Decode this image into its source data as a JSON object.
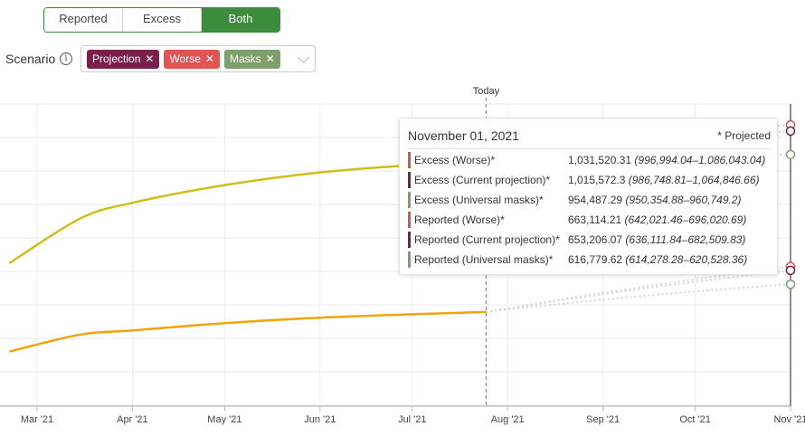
{
  "toggle": {
    "options": [
      "Reported",
      "Excess",
      "Both"
    ],
    "active": "Both"
  },
  "scenario": {
    "label": "Scenario",
    "info_icon": "i",
    "chips": [
      {
        "label": "Projection",
        "remove": "✕",
        "color": "#7a1f4a"
      },
      {
        "label": "Worse",
        "remove": "✕",
        "color": "#e05454"
      },
      {
        "label": "Masks",
        "remove": "✕",
        "color": "#7e9e6a"
      }
    ]
  },
  "chart_data": {
    "type": "line",
    "x_ticks": [
      "Mar '21",
      "Apr '21",
      "May '21",
      "Jun '21",
      "Jul '21",
      "Aug '21",
      "Sep '21",
      "Oct '21",
      "Nov '21"
    ],
    "today_label": "Today",
    "today_date": "2021-07-25",
    "grid": true,
    "series": [
      {
        "name": "Excess",
        "color": "#d1bd1a",
        "points": [
          [
            "2021-02-20",
            672000
          ],
          [
            "2021-03-15",
            788000
          ],
          [
            "2021-04-01",
            829000
          ],
          [
            "2021-05-01",
            875000
          ],
          [
            "2021-06-01",
            908000
          ],
          [
            "2021-07-01",
            927000
          ],
          [
            "2021-07-25",
            938000
          ]
        ]
      },
      {
        "name": "Reported",
        "color": "#f0a30a",
        "points": [
          [
            "2021-02-20",
            442000
          ],
          [
            "2021-03-15",
            486000
          ],
          [
            "2021-04-01",
            497000
          ],
          [
            "2021-05-01",
            516000
          ],
          [
            "2021-06-01",
            530000
          ],
          [
            "2021-07-01",
            539000
          ],
          [
            "2021-07-25",
            545000
          ]
        ]
      }
    ],
    "projection_endpoints": [
      {
        "date": "2021-11-01",
        "value": 1031520.31,
        "color": "#d9534f"
      },
      {
        "date": "2021-11-01",
        "value": 1015572.3,
        "color": "#7a1f4a"
      },
      {
        "date": "2021-11-01",
        "value": 954487.29,
        "color": "#7e9e6a"
      },
      {
        "date": "2021-11-01",
        "value": 663114.21,
        "color": "#d9534f"
      },
      {
        "date": "2021-11-01",
        "value": 653206.07,
        "color": "#7a1f4a"
      },
      {
        "date": "2021-11-01",
        "value": 616779.62,
        "color": "#7e9e6a"
      }
    ]
  },
  "tooltip": {
    "date": "November 01, 2021",
    "projected_note": "* Projected",
    "rows": [
      {
        "label": "Excess (Worse)*",
        "value": "1,031,520.31",
        "ci": "(996,994.04–1,086,043.04)",
        "color": "#d9534f"
      },
      {
        "label": "Excess (Current projection)*",
        "value": "1,015,572.3",
        "ci": "(986,748.81–1,064,846.66)",
        "color": "#7a1f4a"
      },
      {
        "label": "Excess (Universal masks)*",
        "value": "954,487.29",
        "ci": "(950,354.88–960,749.2)",
        "color": "#7e9e6a"
      },
      {
        "label": "Reported (Worse)*",
        "value": "663,114.21",
        "ci": "(642,021.46–696,020.69)",
        "color": "#d9534f"
      },
      {
        "label": "Reported (Current projection)*",
        "value": "653,206.07",
        "ci": "(636,111.84–682,509.83)",
        "color": "#7a1f4a"
      },
      {
        "label": "Reported (Universal masks)*",
        "value": "616,779.62",
        "ci": "(614,278.28–620,528.36)",
        "color": "#7e9e6a"
      }
    ]
  }
}
